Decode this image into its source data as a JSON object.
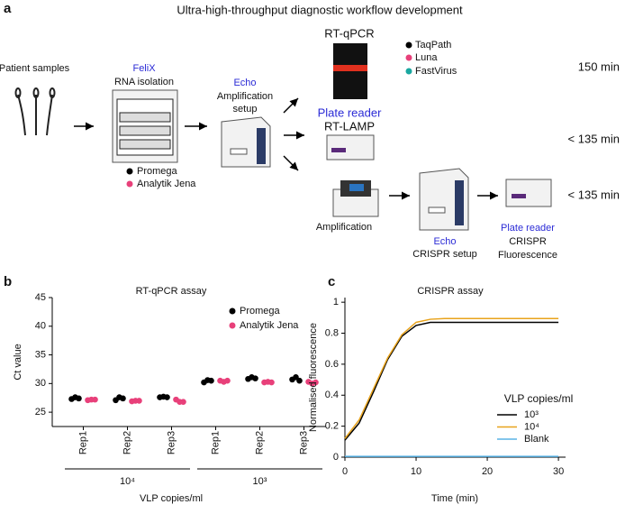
{
  "figure": {
    "panel_labels": [
      "a",
      "b",
      "c"
    ],
    "workflow": {
      "title": "Ultra-high-throughput diagnostic workflow development",
      "patient_samples": "Patient samples",
      "felix": {
        "name": "FeliX",
        "step": "RNA isolation",
        "legend": [
          "Promega",
          "Analytik Jena"
        ]
      },
      "echo": {
        "name": "Echo",
        "step": [
          "Amplification",
          "setup"
        ]
      },
      "rt_qpcr": {
        "name": "RT-qPCR",
        "legend": [
          "TaqPath",
          "Luna",
          "FastVirus"
        ],
        "time": "150 min"
      },
      "rt_lamp": {
        "device": "Plate reader",
        "name": "RT-LAMP",
        "time": "< 135 min"
      },
      "crispr": {
        "amplification": "Amplification",
        "echo": "Echo",
        "setup": "CRISPR setup",
        "device": "Plate reader",
        "readout": [
          "CRISPR",
          "Fluorescence"
        ],
        "time": "< 135 min"
      }
    }
  },
  "chart_data": [
    {
      "type": "dot",
      "title": "RT-qPCR assay",
      "ylabel": "Ct value",
      "xlabel": "VLP copies/ml",
      "categories": [
        "Rep1",
        "Rep2",
        "Rep3",
        "Rep1",
        "Rep2",
        "Rep3"
      ],
      "groups": [
        "10⁴",
        "10³"
      ],
      "ylim": [
        22.5,
        45
      ],
      "yticks": [
        25,
        30,
        35,
        40,
        45
      ],
      "series": [
        {
          "name": "Promega",
          "color": "#000000",
          "values": [
            [
              27.3,
              27.6,
              27.4
            ],
            [
              27.1,
              27.6,
              27.4
            ],
            [
              27.6,
              27.7,
              27.6
            ],
            [
              30.2,
              30.6,
              30.5
            ],
            [
              30.8,
              31.1,
              30.9
            ],
            [
              30.7,
              31.1,
              30.5
            ]
          ]
        },
        {
          "name": "Analytik Jena",
          "color": "#e8407a",
          "values": [
            [
              27.1,
              27.2,
              27.2
            ],
            [
              26.9,
              27.0,
              27.0
            ],
            [
              27.2,
              26.8,
              26.8
            ],
            [
              30.5,
              30.3,
              30.5
            ],
            [
              30.2,
              30.3,
              30.2
            ],
            [
              30.3,
              30.0,
              30.2
            ]
          ]
        }
      ]
    },
    {
      "type": "line",
      "title": "CRISPR assay",
      "ylabel": "Normalised fluorescence",
      "xlabel": "Time (min)",
      "legend_title": "VLP copies/ml",
      "x": [
        0,
        2,
        4,
        6,
        8,
        10,
        12,
        14,
        16,
        18,
        20,
        22,
        24,
        26,
        28,
        30
      ],
      "xlim": [
        0,
        31
      ],
      "xticks": [
        0,
        10,
        20,
        30
      ],
      "ylim": [
        0,
        1.03
      ],
      "yticks": [
        0,
        0.2,
        0.4,
        0.6,
        0.8,
        1
      ],
      "series": [
        {
          "name": "10³",
          "color": "#000000",
          "values": [
            0.11,
            0.22,
            0.42,
            0.63,
            0.78,
            0.85,
            0.87,
            0.87,
            0.87,
            0.87,
            0.87,
            0.87,
            0.87,
            0.87,
            0.87,
            0.87
          ]
        },
        {
          "name": "10⁴",
          "color": "#e8a31c",
          "values": [
            0.12,
            0.24,
            0.44,
            0.64,
            0.79,
            0.87,
            0.89,
            0.895,
            0.895,
            0.895,
            0.895,
            0.895,
            0.895,
            0.895,
            0.895,
            0.895
          ]
        },
        {
          "name": "Blank",
          "color": "#5ab4e6",
          "values": [
            0.005,
            0.005,
            0.005,
            0.005,
            0.005,
            0.005,
            0.005,
            0.005,
            0.005,
            0.005,
            0.005,
            0.005,
            0.005,
            0.005,
            0.005,
            0.005
          ]
        }
      ]
    }
  ]
}
